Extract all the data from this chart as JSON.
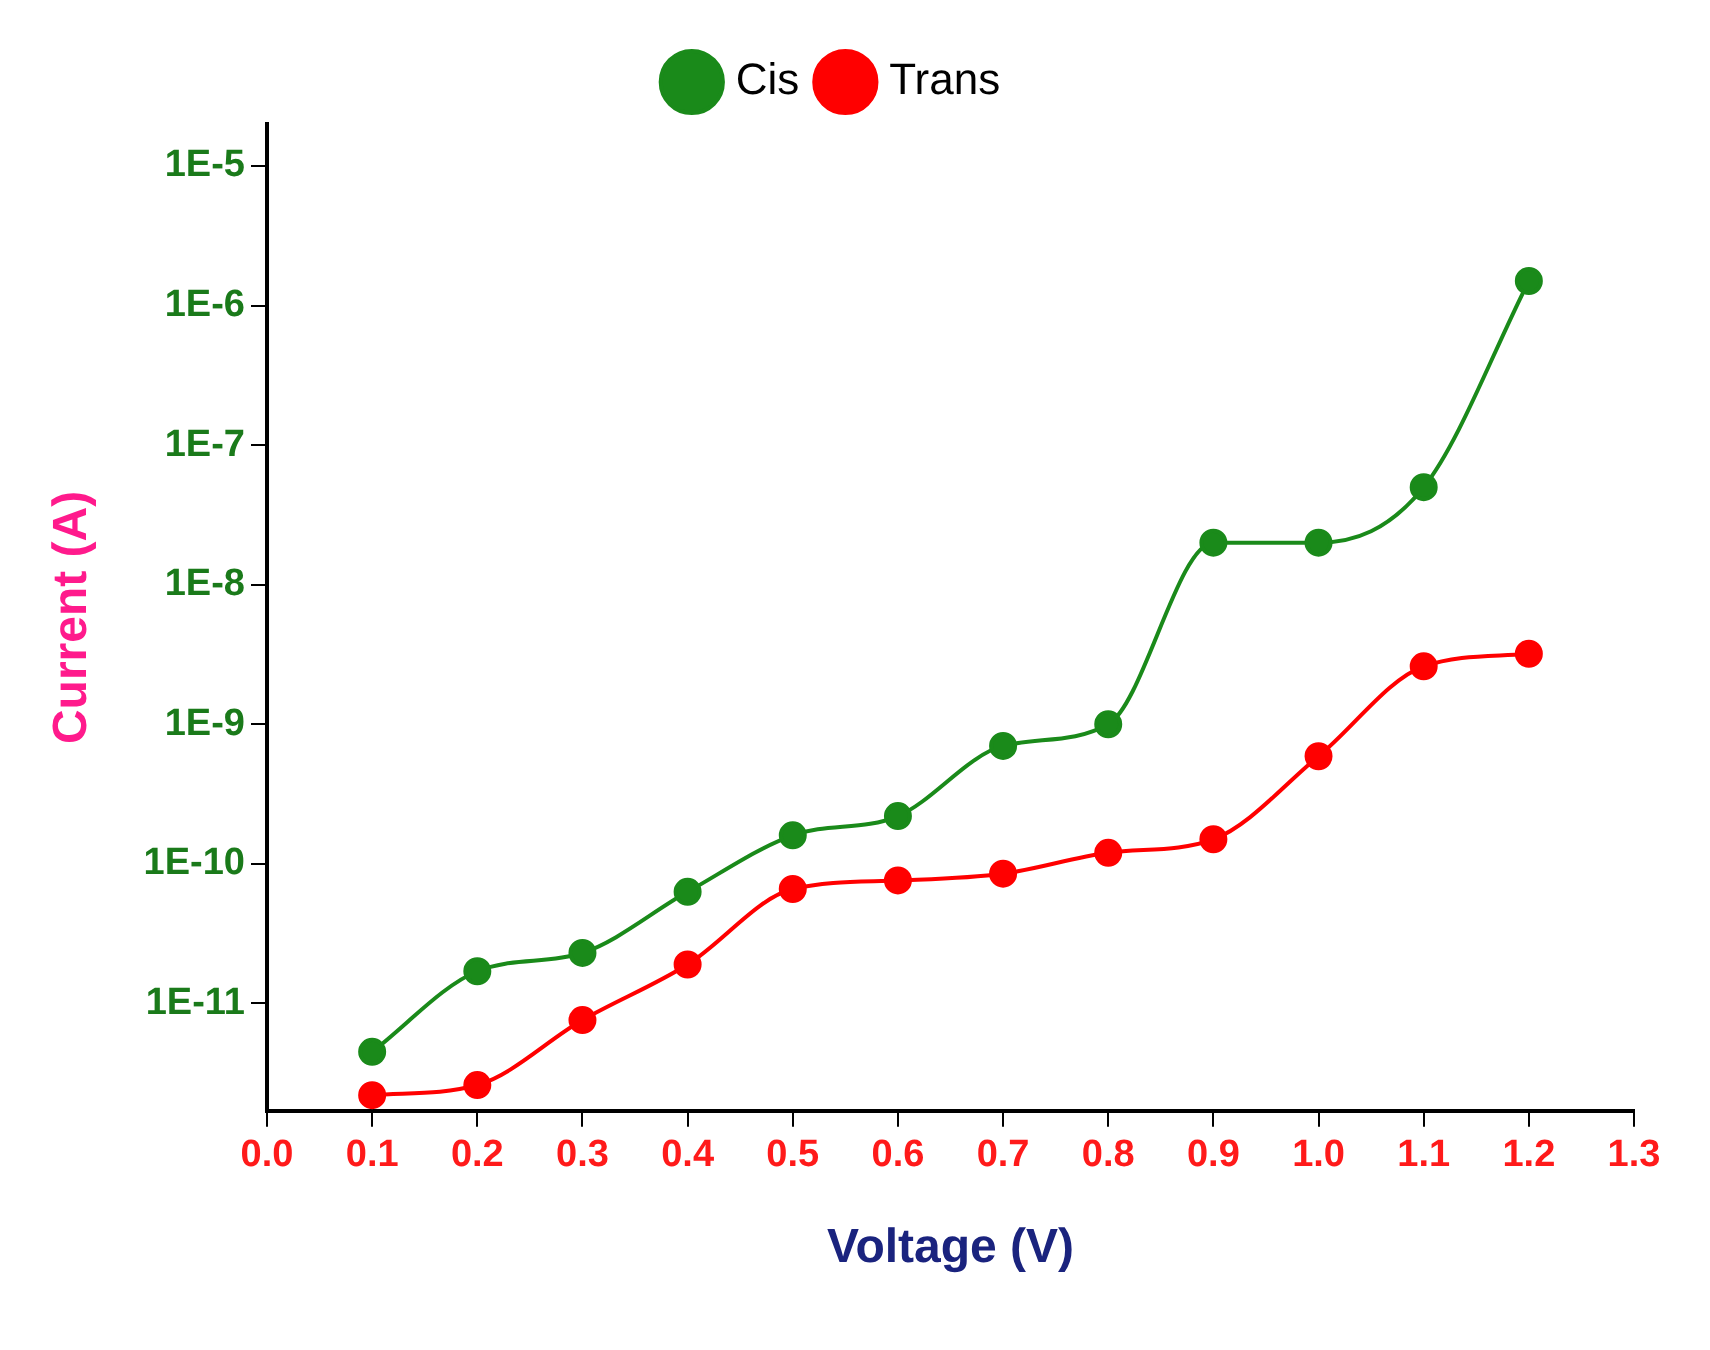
{
  "chart_data": {
    "type": "line",
    "xlabel": "Voltage (V)",
    "ylabel": "Current (A)",
    "log": "y",
    "legend": "top",
    "marker": "circle",
    "line_style": "solid",
    "x": [
      0.1,
      0.2,
      0.3,
      0.4,
      0.5,
      0.6,
      0.7,
      0.8,
      0.9,
      1.0,
      1.1,
      1.2
    ],
    "series": [
      {
        "name": "Cis",
        "color": "#1a8a1a",
        "values": [
          4.5e-12,
          1.7e-11,
          2.3e-11,
          6.3e-11,
          1.6e-10,
          2.2e-10,
          7e-10,
          1e-09,
          2e-08,
          2e-08,
          5e-08,
          1.5e-06
        ]
      },
      {
        "name": "Trans",
        "color": "#ff0000",
        "values": [
          2.2e-12,
          2.6e-12,
          7.6e-12,
          1.9e-11,
          6.6e-11,
          7.6e-11,
          8.5e-11,
          1.2e-10,
          1.5e-10,
          5.9e-10,
          2.6e-09,
          3.2e-09
        ]
      }
    ],
    "xlim": [
      0,
      1.3
    ],
    "xticks": [
      {
        "value": 0,
        "label": "0.0"
      },
      0.1,
      0.2,
      0.3,
      0.4,
      0.5,
      0.6,
      0.7,
      0.8,
      0.9,
      {
        "value": 1,
        "label": "1.0"
      },
      1.1,
      1.2,
      1.3
    ],
    "ylim": [
      1.7e-12,
      2e-05
    ],
    "yticks": [
      {
        "value": 1e-11,
        "label": "1E-11"
      },
      {
        "value": 1e-10,
        "label": "1E-10"
      },
      {
        "value": 1e-09,
        "label": "1E-9"
      },
      {
        "value": 1e-08,
        "label": "1E-8"
      },
      {
        "value": 1e-07,
        "label": "1E-7"
      },
      {
        "value": 1e-06,
        "label": "1E-6"
      },
      {
        "value": 1e-05,
        "label": "1E-5"
      }
    ]
  }
}
